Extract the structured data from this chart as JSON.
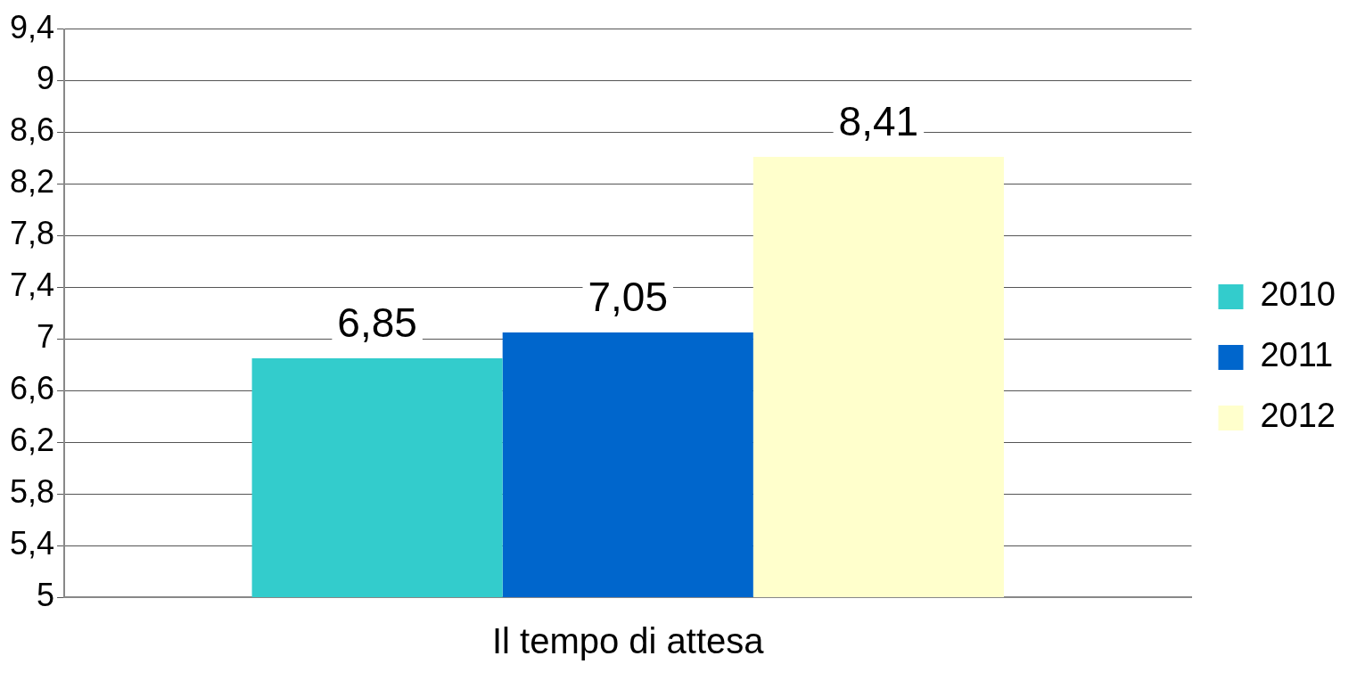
{
  "chart_data": {
    "type": "bar",
    "categories": [
      "Il tempo di attesa"
    ],
    "series": [
      {
        "name": "2010",
        "color": "#33cccc",
        "values": [
          6.85
        ],
        "value_labels": [
          "6,85"
        ]
      },
      {
        "name": "2011",
        "color": "#0066cc",
        "values": [
          7.05
        ],
        "value_labels": [
          "7,05"
        ]
      },
      {
        "name": "2012",
        "color": "#ffffcc",
        "values": [
          8.41
        ],
        "value_labels": [
          "8,41"
        ]
      }
    ],
    "ylim": [
      5,
      9.4
    ],
    "yticks": [
      5,
      {
        "value": 5.4,
        "label": "5,4"
      },
      {
        "value": 5.8,
        "label": "5,8"
      },
      {
        "value": 6.2,
        "label": "6,2"
      },
      {
        "value": 6.6,
        "label": "6,6"
      },
      7,
      {
        "value": 7.4,
        "label": "7,4"
      },
      {
        "value": 7.8,
        "label": "7,8"
      },
      {
        "value": 8.2,
        "label": "8,2"
      },
      {
        "value": 8.6,
        "label": "8,6"
      },
      9,
      {
        "value": 9.4,
        "label": "9,4"
      }
    ],
    "grid": "y",
    "legend": "right"
  }
}
